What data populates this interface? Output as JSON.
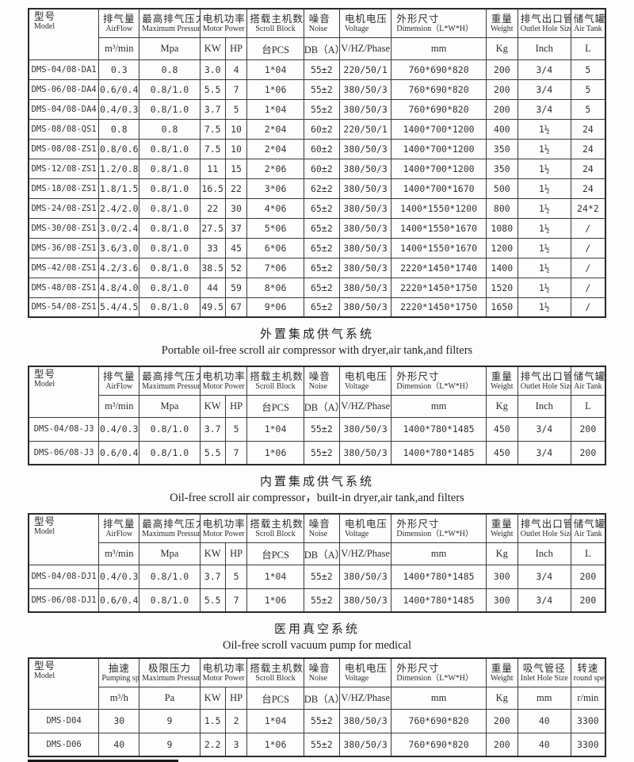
{
  "sections": [
    {
      "name": "main-specs",
      "table": {
        "columns": [
          {
            "cn": "型号",
            "en": "Model",
            "unit": null
          },
          {
            "cn": "排气量",
            "en": "AirFlow",
            "unit": "m³/min"
          },
          {
            "cn": "最高排气压力",
            "en": "Maximum Pressure",
            "unit": "Mpa"
          },
          {
            "cn": "电机功率",
            "en": "Motor Power",
            "units": [
              "KW",
              "HP"
            ]
          },
          {
            "cn": "搭载主机数",
            "en": "Scroll Block",
            "unit": "台PCS"
          },
          {
            "cn": "噪音",
            "en": "Noise",
            "unit": "DB（A）"
          },
          {
            "cn": "电机电压",
            "en": "Voltage",
            "unit": "V/HZ/Phase"
          },
          {
            "cn": "外形尺寸",
            "en": "Dimension（L*W*H）",
            "unit": "mm"
          },
          {
            "cn": "重量",
            "en": "Weight",
            "unit": "Kg"
          },
          {
            "cn": "排气出口管径",
            "en": "Outlet Hole Size",
            "unit": "Inch"
          },
          {
            "cn": "储气罐",
            "en": "Air Tank",
            "unit": "L"
          }
        ],
        "rows": [
          [
            "DMS-04/08-DA1",
            "0.3",
            "0.8",
            "3.0",
            "4",
            "1*04",
            "55±2",
            "220/50/1",
            "760*690*820",
            "200",
            "3/4",
            "5"
          ],
          [
            "DMS-06/08-DA4",
            "0.6/0.4",
            "0.8/1.0",
            "5.5",
            "7",
            "1*06",
            "55±2",
            "380/50/3",
            "760*690*820",
            "200",
            "3/4",
            "5"
          ],
          [
            "DMS-04/08-DA4",
            "0.4/0.3",
            "0.8/1.0",
            "3.7",
            "5",
            "1*04",
            "55±2",
            "380/50/3",
            "760*690*820",
            "200",
            "3/4",
            "5"
          ],
          [
            "DMS-08/08-QS1",
            "0.8",
            "0.8",
            "7.5",
            "10",
            "2*04",
            "60±2",
            "220/50/1",
            "1400*700*1200",
            "400",
            "1½",
            "24"
          ],
          [
            "DMS-08/08-ZS1",
            "0.8/0.6",
            "0.8/1.0",
            "7.5",
            "10",
            "2*04",
            "60±2",
            "380/50/3",
            "1400*700*1200",
            "350",
            "1½",
            "24"
          ],
          [
            "DMS-12/08-ZS1",
            "1.2/0.8",
            "0.8/1.0",
            "11",
            "15",
            "2*06",
            "60±2",
            "380/50/3",
            "1400*700*1200",
            "350",
            "1½",
            "24"
          ],
          [
            "DMS-18/08-ZS1",
            "1.8/1.5",
            "0.8/1.0",
            "16.5",
            "22",
            "3*06",
            "62±2",
            "380/50/3",
            "1400*700*1670",
            "500",
            "1½",
            "24"
          ],
          [
            "DMS-24/08-ZS1",
            "2.4/2.0",
            "0.8/1.0",
            "22",
            "30",
            "4*06",
            "65±2",
            "380/50/3",
            "1400*1550*1200",
            "800",
            "1½",
            "24*2"
          ],
          [
            "DMS-30/08-ZS1",
            "3.0/2.4",
            "0.8/1.0",
            "27.5",
            "37",
            "5*06",
            "65±2",
            "380/50/3",
            "1400*1550*1670",
            "1080",
            "1½",
            "/"
          ],
          [
            "DMS-36/08-ZS1",
            "3.6/3.0",
            "0.8/1.0",
            "33",
            "45",
            "6*06",
            "65±2",
            "380/50/3",
            "1400*1550*1670",
            "1200",
            "1½",
            "/"
          ],
          [
            "DMS-42/08-ZS1",
            "4.2/3.6",
            "0.8/1.0",
            "38.5",
            "52",
            "7*06",
            "65±2",
            "380/50/3",
            "2220*1450*1740",
            "1400",
            "1½",
            "/"
          ],
          [
            "DMS-48/08-ZS1",
            "4.8/4.0",
            "0.8/1.0",
            "44",
            "59",
            "8*06",
            "65±2",
            "380/50/3",
            "2220*1450*1750",
            "1520",
            "1½",
            "/"
          ],
          [
            "DMS-54/08-ZS1",
            "5.4/4.5",
            "0.8/1.0",
            "49.5",
            "67",
            "9*06",
            "65±2",
            "380/50/3",
            "2220*1450*1750",
            "1650",
            "1½",
            "/"
          ]
        ]
      }
    },
    {
      "name": "portable-system",
      "title_cn": "外置集成供气系统",
      "title_en": "Portable oil-free scroll air compressor  with dryer,air tank,and filters",
      "table": {
        "columns": [
          {
            "cn": "型号",
            "en": "Model",
            "unit": null
          },
          {
            "cn": "排气量",
            "en": "AirFlow",
            "unit": "m³/min"
          },
          {
            "cn": "最高排气压力",
            "en": "Maximum Pressure",
            "unit": "Mpa"
          },
          {
            "cn": "电机功率",
            "en": "Motor Power",
            "units": [
              "KW",
              "HP"
            ]
          },
          {
            "cn": "搭载主机数",
            "en": "Scroll Block",
            "unit": "台PCS"
          },
          {
            "cn": "噪音",
            "en": "Noise",
            "unit": "DB（A）"
          },
          {
            "cn": "电机电压",
            "en": "Voltage",
            "unit": "V/HZ/Phase"
          },
          {
            "cn": "外形尺寸",
            "en": "Dimension（L*W*H）",
            "unit": "mm"
          },
          {
            "cn": "重量",
            "en": "Weight",
            "unit": "Kg"
          },
          {
            "cn": "排气出口管径",
            "en": "Outlet Hole Size",
            "unit": "Inch"
          },
          {
            "cn": "储气罐",
            "en": "Air Tank",
            "unit": "L"
          }
        ],
        "rows": [
          [
            "DMS-04/08-J3",
            "0.4/0.3",
            "0.8/1.0",
            "3.7",
            "5",
            "1*04",
            "55±2",
            "380/50/3",
            "1400*780*1485",
            "450",
            "3/4",
            "200"
          ],
          [
            "DMS-06/08-J3",
            "0.6/0.4",
            "0.8/1.0",
            "5.5",
            "7",
            "1*06",
            "55±2",
            "380/50/3",
            "1400*780*1485",
            "450",
            "3/4",
            "200"
          ]
        ]
      }
    },
    {
      "name": "built-in-system",
      "title_cn": "内置集成供气系统",
      "title_en": "Oil-free scroll air compressor，built-in dryer,air tank,and filters",
      "table": {
        "columns": [
          {
            "cn": "型号",
            "en": "Model",
            "unit": null
          },
          {
            "cn": "排气量",
            "en": "AirFlow",
            "unit": "m³/min"
          },
          {
            "cn": "最高排气压力",
            "en": "Maximum Pressure",
            "unit": "Mpa"
          },
          {
            "cn": "电机功率",
            "en": "Motor Power",
            "units": [
              "KW",
              "HP"
            ]
          },
          {
            "cn": "搭载主机数",
            "en": "Scroll Block",
            "unit": "台PCS"
          },
          {
            "cn": "噪音",
            "en": "Noise",
            "unit": "DB（A）"
          },
          {
            "cn": "电机电压",
            "en": "Voltage",
            "unit": "V/HZ/Phase"
          },
          {
            "cn": "外形尺寸",
            "en": "Dimension（L*W*H）",
            "unit": "mm"
          },
          {
            "cn": "重量",
            "en": "Weight",
            "unit": "Kg"
          },
          {
            "cn": "排气出口管径",
            "en": "Outlet Hole Size",
            "unit": "Inch"
          },
          {
            "cn": "储气罐",
            "en": "Air Tank",
            "unit": "L"
          }
        ],
        "rows": [
          [
            "DMS-04/08-DJ1",
            "0.4/0.3",
            "0.8/1.0",
            "3.7",
            "5",
            "1*04",
            "55±2",
            "380/50/3",
            "1400*780*1485",
            "300",
            "3/4",
            "200"
          ],
          [
            "DMS-06/08-DJ1",
            "0.6/0.4",
            "0.8/1.0",
            "5.5",
            "7",
            "1*06",
            "55±2",
            "380/50/3",
            "1400*780*1485",
            "300",
            "3/4",
            "200"
          ]
        ]
      }
    },
    {
      "name": "medical-vacuum",
      "title_cn": "医用真空系统",
      "title_en": "Oil-free scroll vacuum pump for medical",
      "table": {
        "columns": [
          {
            "cn": "型号",
            "en": "Model",
            "unit": null
          },
          {
            "cn": "抽速",
            "en": "Pumping speed",
            "unit": "m³/h"
          },
          {
            "cn": "极限压力",
            "en": "Maximum Pressure",
            "unit": "Pa"
          },
          {
            "cn": "电机功率",
            "en": "Motor Power",
            "units": [
              "KW",
              "HP"
            ]
          },
          {
            "cn": "搭载主机数",
            "en": "Scroll Block",
            "unit": "台PCS"
          },
          {
            "cn": "噪音",
            "en": "Noise",
            "unit": "DB（A）"
          },
          {
            "cn": "电机电压",
            "en": "Voltage",
            "unit": "V/HZ/Phase"
          },
          {
            "cn": "外形尺寸",
            "en": "Dimension（L*W*H）",
            "unit": "mm"
          },
          {
            "cn": "重量",
            "en": "Weight",
            "unit": "Kg"
          },
          {
            "cn": "吸气管径",
            "en": "Inlet Hole Size",
            "unit": "mm"
          },
          {
            "cn": "转速",
            "en": "round speed",
            "unit": "r/min"
          }
        ],
        "rows": [
          [
            "DMS-D04",
            "30",
            "9",
            "1.5",
            "2",
            "1*04",
            "55±2",
            "380/50/3",
            "760*690*820",
            "200",
            "40",
            "3300"
          ],
          [
            "DMS-D06",
            "40",
            "9",
            "2.2",
            "3",
            "1*06",
            "55±2",
            "380/50/3",
            "760*690*820",
            "200",
            "40",
            "3300"
          ]
        ]
      }
    }
  ]
}
